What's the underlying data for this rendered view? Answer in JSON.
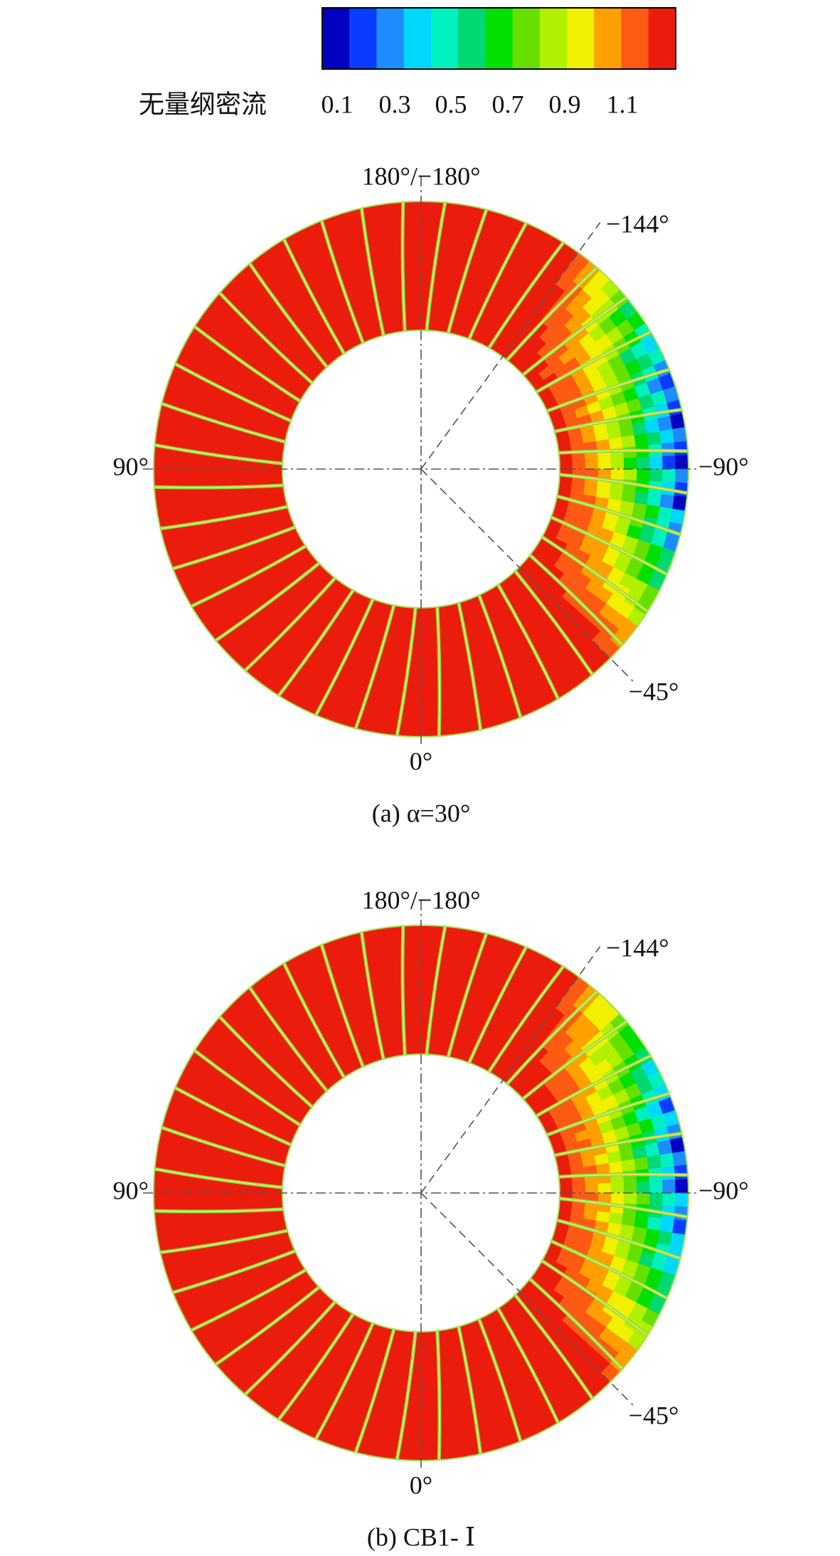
{
  "colorbar": {
    "title": "无量纲密流",
    "tick_labels": [
      "0.1",
      "0.3",
      "0.5",
      "0.7",
      "0.9",
      "1.1"
    ]
  },
  "panels": [
    {
      "labels": {
        "top": "180°/−180°",
        "upper_right": "−144°",
        "left": "90°",
        "right": "−90°",
        "lower_right": "−45°",
        "bottom": "0°"
      },
      "caption": "(a) α=30°"
    },
    {
      "labels": {
        "top": "180°/−180°",
        "upper_right": "−144°",
        "left": "90°",
        "right": "−90°",
        "lower_right": "−45°",
        "bottom": "0°"
      },
      "caption": "(b) CB1- Ⅰ"
    }
  ]
}
